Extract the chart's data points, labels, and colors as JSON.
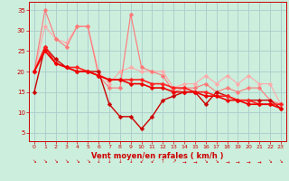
{
  "bg_color": "#cceedd",
  "grid_color": "#aacccc",
  "xlabel": "Vent moyen/en rafales ( km/h )",
  "xlabel_color": "#cc0000",
  "xlim": [
    -0.5,
    23.5
  ],
  "ylim": [
    3,
    37
  ],
  "yticks": [
    5,
    10,
    15,
    20,
    25,
    30,
    35
  ],
  "xticks": [
    0,
    1,
    2,
    3,
    4,
    5,
    6,
    7,
    8,
    9,
    10,
    11,
    12,
    13,
    14,
    15,
    16,
    17,
    18,
    19,
    20,
    21,
    22,
    23
  ],
  "series": [
    {
      "x": [
        0,
        1,
        2,
        3,
        4,
        5,
        6,
        7,
        8,
        9,
        10,
        11,
        12,
        13,
        14,
        15,
        16,
        17,
        18,
        19,
        20,
        21,
        22,
        23
      ],
      "y": [
        20,
        31,
        28,
        27,
        31,
        31,
        20,
        17,
        20,
        21,
        20,
        20,
        20,
        16,
        17,
        17,
        19,
        17,
        19,
        17,
        19,
        17,
        17,
        12
      ],
      "color": "#ffaaaa",
      "lw": 0.8,
      "marker": "D",
      "ms": 2.5
    },
    {
      "x": [
        0,
        1,
        2,
        3,
        4,
        5,
        6,
        7,
        8,
        9,
        10,
        11,
        12,
        13,
        14,
        15,
        16,
        17,
        18,
        19,
        20,
        21,
        22,
        23
      ],
      "y": [
        20,
        35,
        28,
        26,
        31,
        31,
        19,
        16,
        16,
        34,
        21,
        20,
        19,
        15,
        16,
        16,
        17,
        15,
        16,
        15,
        16,
        16,
        13,
        12
      ],
      "color": "#ff7777",
      "lw": 0.8,
      "marker": "D",
      "ms": 2.5
    },
    {
      "x": [
        0,
        1,
        2,
        3,
        4,
        5,
        6,
        7,
        8,
        9,
        10,
        11,
        12,
        13,
        14,
        15,
        16,
        17,
        18,
        19,
        20,
        21,
        22,
        23
      ],
      "y": [
        15,
        26,
        23,
        21,
        20,
        20,
        20,
        12,
        9,
        9,
        6,
        9,
        13,
        14,
        15,
        15,
        12,
        15,
        14,
        13,
        13,
        13,
        13,
        11
      ],
      "color": "#cc0000",
      "lw": 1.0,
      "marker": "D",
      "ms": 2.5
    },
    {
      "x": [
        0,
        1,
        2,
        3,
        4,
        5,
        6,
        7,
        8,
        9,
        10,
        11,
        12,
        13,
        14,
        15,
        16,
        17,
        18,
        19,
        20,
        21,
        22,
        23
      ],
      "y": [
        20,
        26,
        22,
        21,
        21,
        20,
        19,
        18,
        18,
        18,
        18,
        17,
        17,
        16,
        16,
        15,
        15,
        14,
        14,
        13,
        13,
        12,
        12,
        12
      ],
      "color": "#ff2222",
      "lw": 1.2,
      "marker": "D",
      "ms": 2.5
    },
    {
      "x": [
        0,
        1,
        2,
        3,
        4,
        5,
        6,
        7,
        8,
        9,
        10,
        11,
        12,
        13,
        14,
        15,
        16,
        17,
        18,
        19,
        20,
        21,
        22,
        23
      ],
      "y": [
        20,
        25,
        22,
        21,
        20,
        20,
        19,
        18,
        18,
        17,
        17,
        16,
        16,
        15,
        15,
        15,
        14,
        14,
        13,
        13,
        12,
        12,
        12,
        11
      ],
      "color": "#ee0000",
      "lw": 1.2,
      "marker": "D",
      "ms": 2.5
    }
  ],
  "wind_symbols": [
    "↘",
    "↘",
    "↘",
    "↘",
    "↘",
    "↘",
    "↓",
    "↓",
    "↓",
    "↓",
    "↙",
    "↙",
    "↑",
    "↗",
    "→",
    "→",
    "↘",
    "↘",
    "→",
    "→",
    "→",
    "→",
    "↘",
    "↘"
  ],
  "wind_color": "#cc0000"
}
